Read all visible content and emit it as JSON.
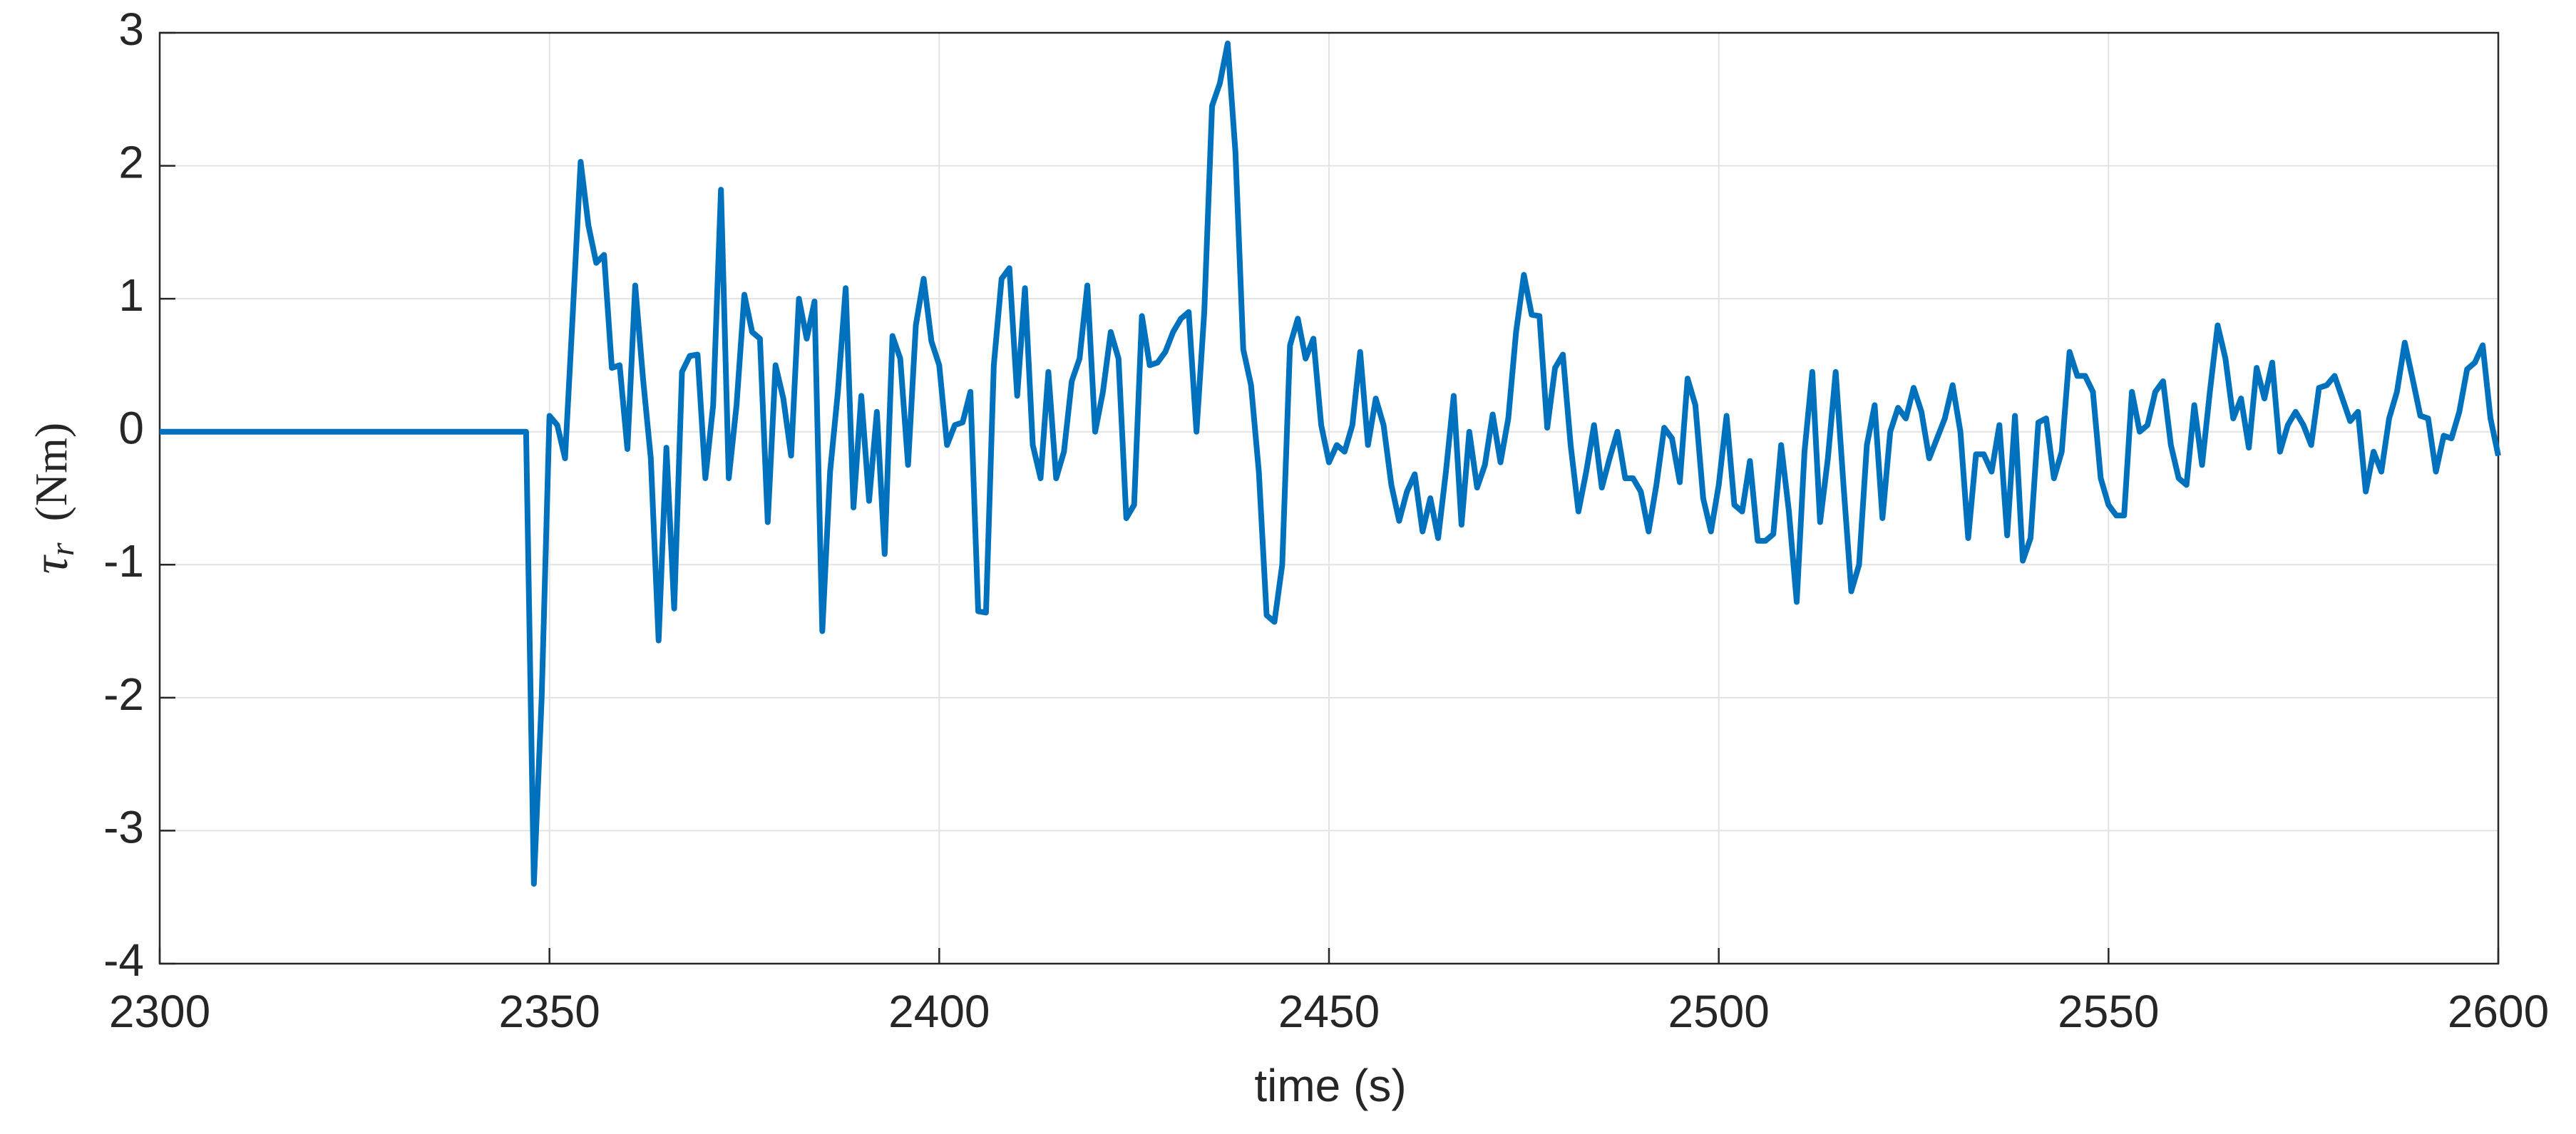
{
  "chart_data": {
    "type": "line",
    "xlabel": "time (s)",
    "ylabel": {
      "symbol": "τ",
      "subscript": "r",
      "unit": "(Nm)"
    },
    "xlim": [
      2300,
      2600
    ],
    "xticks": [
      2300,
      2350,
      2400,
      2450,
      2500,
      2550,
      2600
    ],
    "ylim": [
      -4,
      3
    ],
    "yticks": [
      -4,
      -3,
      -2,
      -1,
      0,
      1,
      2,
      3
    ],
    "grid": true,
    "series": [
      {
        "color": "#0072bd",
        "x": [
          2300,
          2347,
          2348,
          2349,
          2350,
          2351,
          2352,
          2353,
          2354,
          2355,
          2356,
          2357,
          2358,
          2359,
          2360,
          2361,
          2362,
          2363,
          2364,
          2365,
          2366,
          2367,
          2368,
          2369,
          2370,
          2371,
          2372,
          2373,
          2374,
          2375,
          2376,
          2377,
          2378,
          2379,
          2380,
          2381,
          2382,
          2383,
          2384,
          2385,
          2386,
          2387,
          2388,
          2389,
          2390,
          2391,
          2392,
          2393,
          2394,
          2395,
          2396,
          2397,
          2398,
          2399,
          2400,
          2401,
          2402,
          2403,
          2404,
          2405,
          2406,
          2407,
          2408,
          2409,
          2410,
          2411,
          2412,
          2413,
          2414,
          2415,
          2416,
          2417,
          2418,
          2419,
          2420,
          2421,
          2422,
          2423,
          2424,
          2425,
          2426,
          2427,
          2428,
          2429,
          2430,
          2431,
          2432,
          2433,
          2434,
          2435,
          2436,
          2437,
          2438,
          2439,
          2440,
          2441,
          2442,
          2443,
          2444,
          2445,
          2446,
          2447,
          2448,
          2449,
          2450,
          2451,
          2452,
          2453,
          2454,
          2455,
          2456,
          2457,
          2458,
          2459,
          2460,
          2461,
          2462,
          2463,
          2464,
          2465,
          2466,
          2467,
          2468,
          2469,
          2470,
          2471,
          2472,
          2473,
          2474,
          2475,
          2476,
          2477,
          2478,
          2479,
          2480,
          2481,
          2482,
          2483,
          2484,
          2485,
          2486,
          2487,
          2488,
          2489,
          2490,
          2491,
          2492,
          2493,
          2494,
          2495,
          2496,
          2497,
          2498,
          2499,
          2500,
          2501,
          2502,
          2503,
          2504,
          2505,
          2506,
          2507,
          2508,
          2509,
          2510,
          2511,
          2512,
          2513,
          2514,
          2515,
          2516,
          2517,
          2518,
          2519,
          2520,
          2521,
          2522,
          2523,
          2524,
          2525,
          2526,
          2527,
          2528,
          2529,
          2530,
          2531,
          2532,
          2533,
          2534,
          2535,
          2536,
          2537,
          2538,
          2539,
          2540,
          2541,
          2542,
          2543,
          2544,
          2545,
          2546,
          2547,
          2548,
          2549,
          2550,
          2551,
          2552,
          2553,
          2554,
          2555,
          2556,
          2557,
          2558,
          2559,
          2560,
          2561,
          2562,
          2563,
          2564,
          2565,
          2566,
          2567,
          2568,
          2569,
          2570,
          2571,
          2572,
          2573,
          2574,
          2575,
          2576,
          2577,
          2578,
          2579,
          2580,
          2581,
          2582,
          2583,
          2584,
          2585,
          2586,
          2587,
          2588,
          2589,
          2590,
          2591,
          2592,
          2593,
          2594,
          2595,
          2596,
          2597,
          2598,
          2599,
          2600
        ],
        "values": [
          0,
          0,
          -3.4,
          -2.0,
          0.12,
          0.05,
          -0.2,
          0.9,
          2.03,
          1.55,
          1.27,
          1.33,
          0.48,
          0.5,
          -0.13,
          1.1,
          0.4,
          -0.2,
          -1.57,
          -0.12,
          -1.33,
          0.45,
          0.57,
          0.58,
          -0.35,
          0.2,
          1.82,
          -0.35,
          0.2,
          1.03,
          0.75,
          0.7,
          -0.68,
          0.5,
          0.25,
          -0.18,
          1.0,
          0.7,
          0.98,
          -1.5,
          -0.3,
          0.3,
          1.08,
          -0.57,
          0.27,
          -0.52,
          0.15,
          -0.92,
          0.72,
          0.55,
          -0.25,
          0.8,
          1.15,
          0.68,
          0.5,
          -0.1,
          0.05,
          0.07,
          0.3,
          -1.35,
          -1.36,
          0.5,
          1.15,
          1.23,
          0.27,
          1.08,
          -0.1,
          -0.35,
          0.45,
          -0.35,
          -0.15,
          0.38,
          0.55,
          1.1,
          0.0,
          0.3,
          0.75,
          0.55,
          -0.65,
          -0.55,
          0.87,
          0.5,
          0.52,
          0.6,
          0.75,
          0.85,
          0.9,
          0.0,
          0.9,
          2.45,
          2.62,
          2.92,
          2.1,
          0.62,
          0.35,
          -0.3,
          -1.38,
          -1.43,
          -1.0,
          0.65,
          0.85,
          0.55,
          0.7,
          0.05,
          -0.23,
          -0.1,
          -0.15,
          0.05,
          0.6,
          -0.1,
          0.25,
          0.05,
          -0.4,
          -0.67,
          -0.45,
          -0.32,
          -0.75,
          -0.5,
          -0.8,
          -0.3,
          0.27,
          -0.7,
          0.0,
          -0.42,
          -0.25,
          0.13,
          -0.23,
          0.1,
          0.75,
          1.18,
          0.88,
          0.87,
          0.03,
          0.48,
          0.58,
          -0.1,
          -0.6,
          -0.3,
          0.05,
          -0.42,
          -0.2,
          0.0,
          -0.35,
          -0.35,
          -0.45,
          -0.75,
          -0.4,
          0.03,
          -0.05,
          -0.38,
          0.4,
          0.2,
          -0.5,
          -0.75,
          -0.4,
          0.12,
          -0.55,
          -0.6,
          -0.22,
          -0.82,
          -0.82,
          -0.77,
          -0.1,
          -0.6,
          -1.28,
          -0.15,
          0.45,
          -0.68,
          -0.2,
          0.45,
          -0.4,
          -1.2,
          -1.0,
          -0.1,
          0.2,
          -0.65,
          0.0,
          0.18,
          0.1,
          0.33,
          0.15,
          -0.2,
          -0.05,
          0.1,
          0.35,
          0.0,
          -0.8,
          -0.17,
          -0.17,
          -0.3,
          0.05,
          -0.78,
          0.12,
          -0.97,
          -0.8,
          0.07,
          0.1,
          -0.35,
          -0.15,
          0.6,
          0.42,
          0.42,
          0.3,
          -0.35,
          -0.55,
          -0.63,
          -0.63,
          0.3,
          0.0,
          0.05,
          0.3,
          0.38,
          -0.1,
          -0.35,
          -0.4,
          0.2,
          -0.25,
          0.3,
          0.8,
          0.55,
          0.1,
          0.25,
          -0.12,
          0.48,
          0.25,
          0.52,
          -0.15,
          0.05,
          0.15,
          0.05,
          -0.1,
          0.33,
          0.35,
          0.42,
          0.25,
          0.08,
          0.15,
          -0.45,
          -0.15,
          -0.3,
          0.1,
          0.3,
          0.67,
          0.4,
          0.12,
          0.1,
          -0.3,
          -0.03,
          -0.05,
          0.15,
          0.47,
          0.52,
          0.65,
          0.1,
          -0.18
        ]
      }
    ]
  }
}
